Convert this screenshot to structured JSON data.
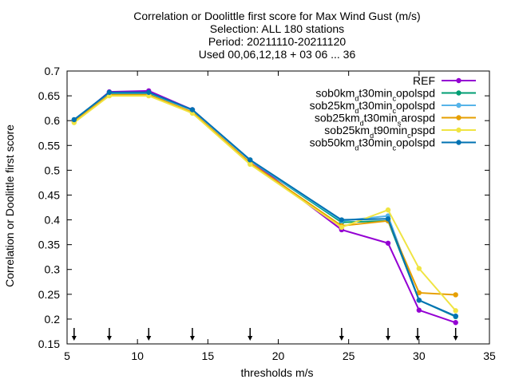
{
  "chart_data": {
    "type": "line",
    "title_lines": [
      "Correlation or Doolittle first score  for Max Wind Gust (m/s)",
      "Selection: ALL    180 stations",
      "Period: 20211110-20211120",
      "Used 00,06,12,18 + 03 06 ... 36"
    ],
    "xlabel": "thresholds m/s",
    "ylabel": "Correlation or Doolittle first score",
    "xlim": [
      5,
      35
    ],
    "ylim": [
      0.15,
      0.7
    ],
    "xticks": [
      5,
      10,
      15,
      20,
      25,
      30,
      35
    ],
    "yticks": [
      0.15,
      0.2,
      0.25,
      0.3,
      0.35,
      0.4,
      0.45,
      0.5,
      0.55,
      0.6,
      0.65,
      0.7
    ],
    "grid": false,
    "legend_position": "top-right",
    "marker_x": [
      5.5,
      8,
      10.8,
      13.9,
      18,
      24.5,
      27.8,
      29.9,
      32.6
    ],
    "series": [
      {
        "name": "REF",
        "legend_parts": [
          [
            "REF",
            ""
          ]
        ],
        "color": "#9400d3",
        "x": [
          5.5,
          8,
          10.8,
          13.9,
          18,
          24.5,
          27.8,
          30.0,
          32.6
        ],
        "y": [
          0.6,
          0.658,
          0.66,
          0.622,
          0.52,
          0.38,
          0.353,
          0.218,
          0.193
        ]
      },
      {
        "name": "sob0km_d t30min_c opolspd",
        "legend_parts": [
          [
            "sob0km",
            ""
          ],
          [
            "d",
            "sub"
          ],
          [
            "t30min",
            ""
          ],
          [
            "c",
            "sub"
          ],
          [
            "opolspd",
            ""
          ]
        ],
        "color": "#009e73",
        "x": [
          5.5,
          8,
          10.8,
          13.9,
          18,
          24.5,
          27.8,
          30.0,
          32.6
        ],
        "y": [
          0.601,
          0.655,
          0.655,
          0.621,
          0.52,
          0.395,
          0.398,
          0.238,
          0.205
        ]
      },
      {
        "name": "sob25km_d t30min_c opolspd",
        "legend_parts": [
          [
            "sob25km",
            ""
          ],
          [
            "d",
            "sub"
          ],
          [
            "t30min",
            ""
          ],
          [
            "c",
            "sub"
          ],
          [
            "opolspd",
            ""
          ]
        ],
        "color": "#56b4e9",
        "x": [
          5.5,
          8,
          10.8,
          13.9,
          18,
          24.5,
          27.8,
          30.0,
          32.6
        ],
        "y": [
          0.601,
          0.656,
          0.656,
          0.621,
          0.52,
          0.398,
          0.408,
          0.238,
          0.206
        ]
      },
      {
        "name": "sob25km_d t30min_s arospd",
        "legend_parts": [
          [
            "sob25km",
            ""
          ],
          [
            "d",
            "sub"
          ],
          [
            "t30min",
            ""
          ],
          [
            "s",
            "sub"
          ],
          [
            "arospd",
            ""
          ]
        ],
        "color": "#e69f00",
        "x": [
          5.5,
          8,
          10.8,
          13.9,
          18,
          24.5,
          27.8,
          30.0,
          32.6
        ],
        "y": [
          0.598,
          0.652,
          0.652,
          0.617,
          0.515,
          0.388,
          0.398,
          0.253,
          0.249
        ]
      },
      {
        "name": "sob25km_d t90min_c pspd",
        "legend_parts": [
          [
            "sob25km",
            ""
          ],
          [
            "d",
            "sub"
          ],
          [
            "t90min",
            ""
          ],
          [
            "c",
            "sub"
          ],
          [
            "pspd",
            ""
          ]
        ],
        "color": "#f0e442",
        "x": [
          5.5,
          8,
          10.8,
          13.9,
          18,
          24.5,
          27.8,
          30.0,
          32.6
        ],
        "y": [
          0.596,
          0.65,
          0.65,
          0.615,
          0.512,
          0.385,
          0.42,
          0.302,
          0.217
        ]
      },
      {
        "name": "sob50km_d t30min_c opolspd",
        "legend_parts": [
          [
            "sob50km",
            ""
          ],
          [
            "d",
            "sub"
          ],
          [
            "t30min",
            ""
          ],
          [
            "c",
            "sub"
          ],
          [
            "opolspd",
            ""
          ]
        ],
        "color": "#0072b2",
        "x": [
          5.5,
          8,
          10.8,
          13.9,
          18,
          24.5,
          27.8,
          30.0,
          32.6
        ],
        "y": [
          0.602,
          0.657,
          0.657,
          0.622,
          0.521,
          0.4,
          0.402,
          0.238,
          0.206
        ]
      }
    ]
  }
}
